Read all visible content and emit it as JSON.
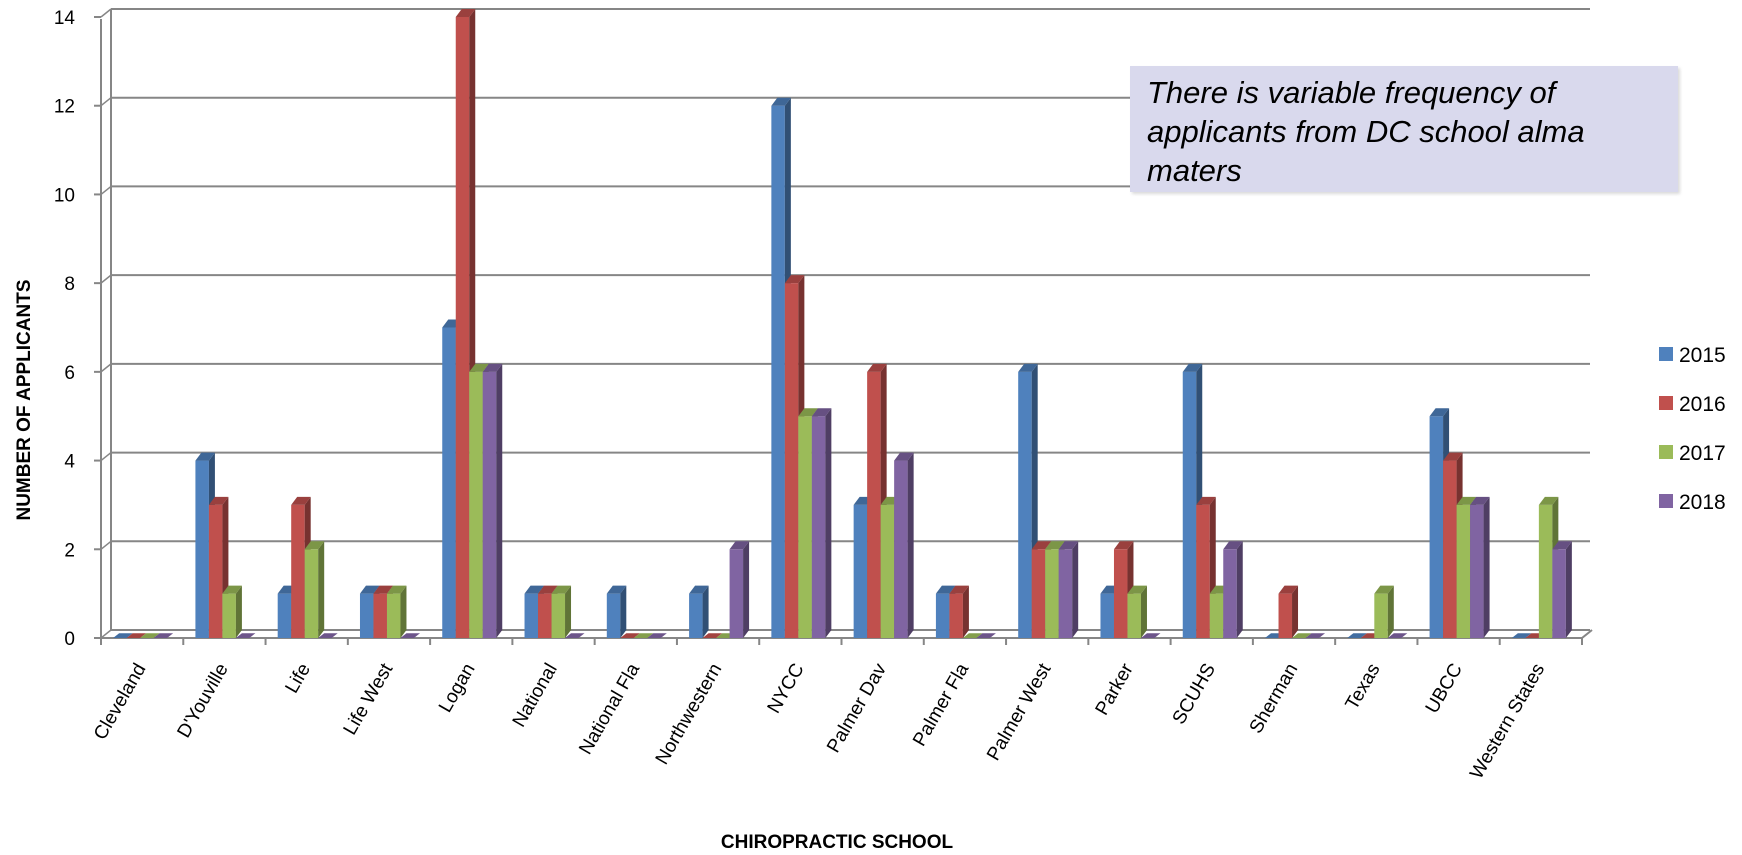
{
  "chart_data": {
    "type": "bar",
    "title": "",
    "xlabel": "CHIROPRACTIC SCHOOL",
    "ylabel": "NUMBER OF APPLICANTS",
    "ylim": [
      0,
      14
    ],
    "yticks": [
      0,
      2,
      4,
      6,
      8,
      10,
      12,
      14
    ],
    "grid": true,
    "legend": "right",
    "style": "3d-clustered-column",
    "categories": [
      "Cleveland",
      "D'Youville",
      "Life",
      "Life West",
      "Logan",
      "National",
      "National Fla",
      "Northwestern",
      "NYCC",
      "Palmer Dav",
      "Palmer Fla",
      "Palmer West",
      "Parker",
      "SCUHS",
      "Sherman",
      "Texas",
      "UBCC",
      "Western States"
    ],
    "series": [
      {
        "name": "2015",
        "color": "#4f81bd",
        "values": [
          0,
          4,
          1,
          1,
          7,
          1,
          1,
          1,
          12,
          3,
          1,
          6,
          1,
          6,
          0,
          0,
          5,
          0
        ]
      },
      {
        "name": "2016",
        "color": "#c0504d",
        "values": [
          0,
          3,
          3,
          1,
          14,
          1,
          0,
          0,
          8,
          6,
          1,
          2,
          2,
          3,
          1,
          0,
          4,
          0
        ]
      },
      {
        "name": "2017",
        "color": "#9bbb59",
        "values": [
          0,
          1,
          2,
          1,
          6,
          1,
          0,
          0,
          5,
          3,
          0,
          2,
          1,
          1,
          0,
          1,
          3,
          3
        ]
      },
      {
        "name": "2018",
        "color": "#8064a2",
        "values": [
          0,
          0,
          0,
          0,
          6,
          0,
          0,
          2,
          5,
          4,
          0,
          2,
          0,
          2,
          0,
          0,
          3,
          2
        ]
      }
    ],
    "annotation": "There is variable frequency of applicants from DC school  alma maters"
  }
}
